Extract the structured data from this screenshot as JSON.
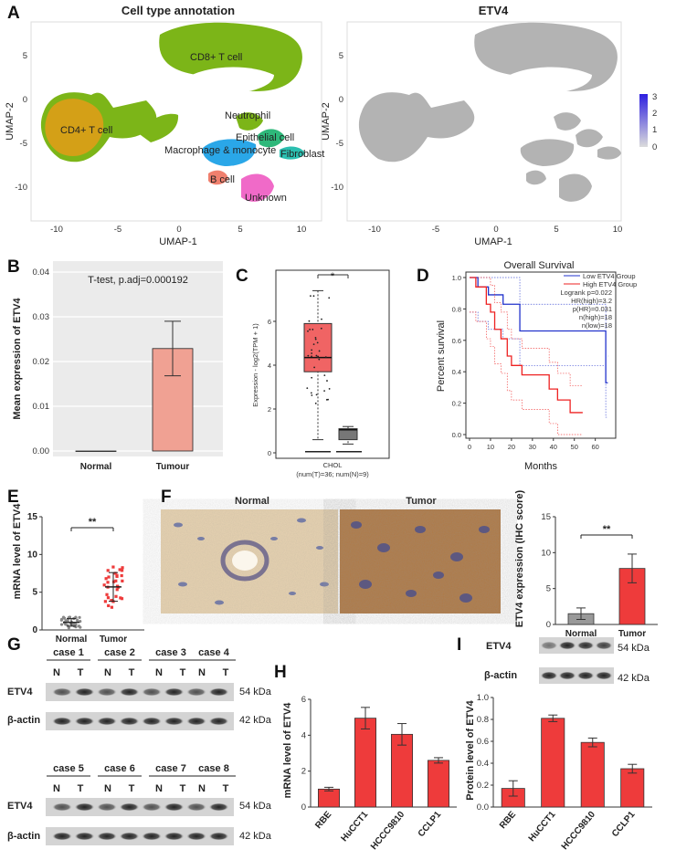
{
  "panel_letters": [
    "A",
    "B",
    "C",
    "D",
    "E",
    "F",
    "G",
    "H",
    "I"
  ],
  "colors": {
    "red_bar": "#ee3b3b",
    "salmon_bar": "#f0a193",
    "blue_line": "#2233cc",
    "red_line": "#ee2222",
    "grey_cells": "#9a9a9a"
  },
  "umap_left": {
    "title": "Cell type annotation",
    "xlabel": "UMAP-1",
    "ylabel": "UMAP-2",
    "xticks": [
      "-10",
      "-5",
      "0",
      "5",
      "10"
    ],
    "yticks": [
      "5",
      "0",
      "-5",
      "-10"
    ],
    "clusters": [
      {
        "label": "CD8+ T cell",
        "color": "#7cb518"
      },
      {
        "label": "CD4+ T cell",
        "color": "#d4a017"
      },
      {
        "label": "Neutrophil",
        "color": "#7cb518"
      },
      {
        "label": "Epithelial cell",
        "color": "#2eb87a"
      },
      {
        "label": "Macrophage & monocyte",
        "color": "#2aa7e8"
      },
      {
        "label": "Fibroblast",
        "color": "#2bbfb0"
      },
      {
        "label": "B cell",
        "color": "#f0806e"
      },
      {
        "label": "Unknown",
        "color": "#f06ac8"
      }
    ]
  },
  "umap_right": {
    "title": "ETV4",
    "xlabel": "UMAP-1",
    "ylabel": "UMAP-2",
    "xticks": [
      "-10",
      "-5",
      "0",
      "5",
      "10"
    ],
    "yticks": [
      "5",
      "0",
      "-5",
      "-10"
    ],
    "colorbar_ticks": [
      "3",
      "2",
      "1",
      "0"
    ]
  },
  "chart_data": [
    {
      "panel": "B",
      "type": "bar",
      "title": "T-test, p.adj=0.000192",
      "ylabel": "Mean expression of ETV4",
      "categories": [
        "Normal",
        "Tumour"
      ],
      "values": [
        0.0,
        0.0229
      ],
      "error": [
        0,
        0.0061
      ],
      "ylim": [
        0,
        0.04
      ],
      "yticks": [
        "0.00",
        "0.01",
        "0.02",
        "0.03",
        "0.04"
      ]
    },
    {
      "panel": "C",
      "type": "box",
      "ylabel": "Expression - log2(TPM + 1)",
      "xlabel": "CHOL",
      "xnote": "(num(T)=36; num(N)=9)",
      "series": [
        {
          "name": "T",
          "min": 0.6,
          "q1": 3.7,
          "median": 4.35,
          "q3": 5.9,
          "max": 7.4
        },
        {
          "name": "N",
          "min": 0.4,
          "q1": 0.6,
          "median": 1.05,
          "q3": 1.1,
          "max": 1.2
        }
      ],
      "ylim": [
        0,
        8
      ],
      "yticks": [
        "0",
        "2",
        "4",
        "6"
      ],
      "significance": "*"
    },
    {
      "panel": "D",
      "type": "line",
      "title": "Overall Survival",
      "xlabel": "Months",
      "ylabel": "Percent survival",
      "xticks": [
        "0",
        "10",
        "20",
        "30",
        "40",
        "50",
        "60"
      ],
      "yticks": [
        "0.0",
        "0.2",
        "0.4",
        "0.6",
        "0.8",
        "1.0"
      ],
      "legend": [
        "Low ETV4 Group",
        "High ETV4 Group"
      ],
      "stats": [
        "Logrank p=0.022",
        "HR(high)=3.2",
        "p(HR)=0.031",
        "n(high)=18",
        "n(low)=18"
      ],
      "series": [
        {
          "name": "Low ETV4 Group",
          "points": [
            [
              0,
              1.0
            ],
            [
              4,
              0.94
            ],
            [
              9,
              0.89
            ],
            [
              16,
              0.83
            ],
            [
              24,
              0.66
            ],
            [
              65,
              0.66
            ],
            [
              65,
              0.33
            ],
            [
              66,
              0.33
            ]
          ]
        },
        {
          "name": "High ETV4 Group",
          "points": [
            [
              0,
              1.0
            ],
            [
              3,
              0.94
            ],
            [
              8,
              0.83
            ],
            [
              10,
              0.78
            ],
            [
              12,
              0.67
            ],
            [
              15,
              0.61
            ],
            [
              18,
              0.5
            ],
            [
              20,
              0.44
            ],
            [
              25,
              0.38
            ],
            [
              38,
              0.29
            ],
            [
              42,
              0.22
            ],
            [
              48,
              0.14
            ],
            [
              54,
              0.14
            ]
          ]
        }
      ]
    },
    {
      "panel": "E",
      "type": "scatter",
      "ylabel": "mRNA level of ETV4",
      "categories": [
        "Normal",
        "Tumor"
      ],
      "means": [
        1.0,
        5.7
      ],
      "sd": [
        0.5,
        1.9
      ],
      "ylim": [
        0,
        15
      ],
      "yticks": [
        "0",
        "5",
        "10",
        "15"
      ],
      "significance": "**"
    },
    {
      "panel": "F",
      "type": "bar",
      "image_labels": [
        "Normal",
        "Tumor"
      ],
      "ylabel": "ETV4 expression (IHC score)",
      "categories": [
        "Normal",
        "Tumor"
      ],
      "values": [
        1.5,
        7.8
      ],
      "error": [
        0.8,
        2.0
      ],
      "ylim": [
        0,
        15
      ],
      "yticks": [
        "0",
        "5",
        "10",
        "15"
      ],
      "significance": "**"
    },
    {
      "panel": "H",
      "type": "bar",
      "ylabel": "mRNA level of ETV4",
      "categories": [
        "RBE",
        "HuCCT1",
        "HCCC9810",
        "CCLP1"
      ],
      "values": [
        1.0,
        4.95,
        4.05,
        2.6
      ],
      "error": [
        0.1,
        0.6,
        0.6,
        0.15
      ],
      "ylim": [
        0,
        6
      ],
      "yticks": [
        "0",
        "2",
        "4",
        "6"
      ]
    },
    {
      "panel": "I",
      "type": "bar",
      "ylabel": "Protein level of ETV4",
      "categories": [
        "RBE",
        "HuCCT1",
        "HCCC9810",
        "CCLP1"
      ],
      "values": [
        0.17,
        0.81,
        0.59,
        0.35
      ],
      "error": [
        0.07,
        0.03,
        0.04,
        0.04
      ],
      "ylim": [
        0,
        1.0
      ],
      "yticks": [
        "0.0",
        "0.2",
        "0.4",
        "0.6",
        "0.8",
        "1.0"
      ]
    }
  ],
  "western_g": {
    "cases_top": [
      "case 1",
      "case 2",
      "case 3",
      "case 4"
    ],
    "cases_bottom": [
      "case 5",
      "case 6",
      "case 7",
      "case 8"
    ],
    "lanes": [
      "N",
      "T"
    ],
    "rows": [
      "ETV4",
      "β-actin"
    ],
    "kda": [
      "54 kDa",
      "42 kDa"
    ]
  },
  "western_i": {
    "rows": [
      "ETV4",
      "β-actin"
    ],
    "kda": [
      "54 kDa",
      "42 kDa"
    ]
  }
}
